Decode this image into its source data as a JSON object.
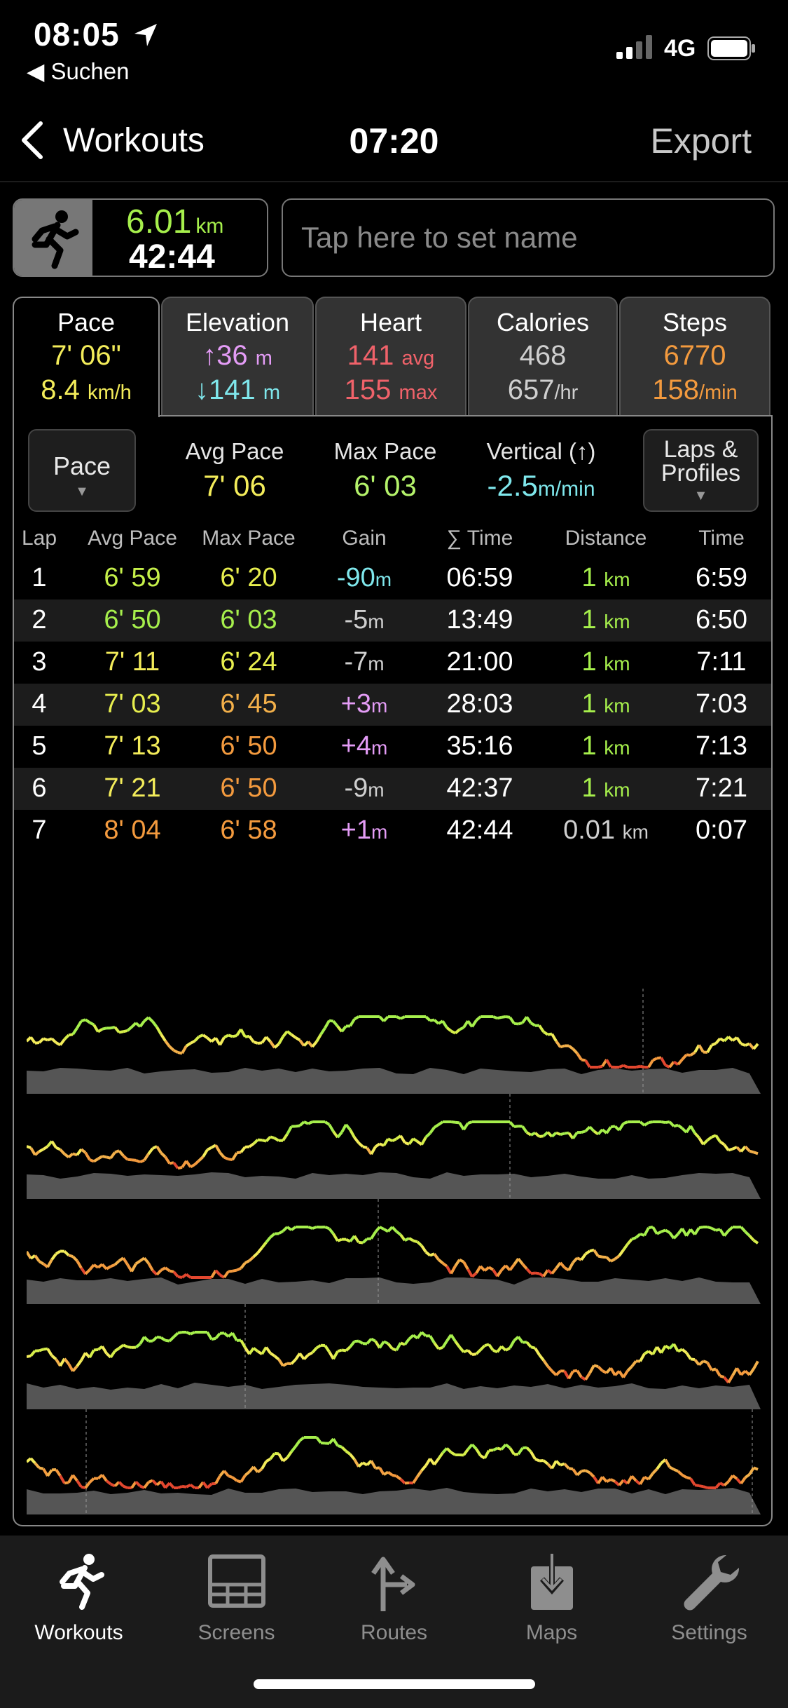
{
  "status": {
    "time": "08:05",
    "back_app": "◀ Suchen",
    "network": "4G"
  },
  "nav": {
    "back_label": "Workouts",
    "title": "07:20",
    "export_label": "Export"
  },
  "summary": {
    "distance": "6.01",
    "distance_unit": "km",
    "duration": "42:44"
  },
  "name_field": {
    "placeholder": "Tap here to set name",
    "value": ""
  },
  "tabs": [
    {
      "label": "Pace",
      "v1": "7' 06\"",
      "v1_unit": "",
      "v2": "8.4",
      "v2_unit": "km/h",
      "color1": "#f3ec5a",
      "color2": "#f3ec5a",
      "active": true
    },
    {
      "label": "Elevation",
      "v1": "↑36",
      "v1_unit": "m",
      "v2": "↓141",
      "v2_unit": "m",
      "color1": "#e49cf6",
      "color2": "#7fe7ec",
      "active": false
    },
    {
      "label": "Heart",
      "v1": "141",
      "v1_unit": "avg",
      "v2": "155",
      "v2_unit": "max",
      "color1": "#f0626a",
      "color2": "#f0626a",
      "active": false
    },
    {
      "label": "Calories",
      "v1": "468",
      "v1_unit": "",
      "v2": "657",
      "v2_unit": "/hr",
      "color1": "#cfcfcf",
      "color2": "#cfcfcf",
      "active": false
    },
    {
      "label": "Steps",
      "v1": "6770",
      "v1_unit": "",
      "v2": "158",
      "v2_unit": "/min",
      "color1": "#f39a3e",
      "color2": "#f39a3e",
      "active": false
    }
  ],
  "controls": {
    "pace_dropdown": "Pace",
    "laps_dropdown_line1": "Laps &",
    "laps_dropdown_line2": "Profiles",
    "dropdown_arrow": "▼"
  },
  "stats": [
    {
      "label": "Avg Pace",
      "value": "7' 06",
      "unit": "",
      "color": "#f3ec5a"
    },
    {
      "label": "Max Pace",
      "value": "6' 03",
      "unit": "",
      "color": "#b4f26a"
    },
    {
      "label": "Vertical (↑)",
      "value": "-2.5",
      "unit": "m/min",
      "color": "#7fe7ec"
    }
  ],
  "laps_table": {
    "headers": [
      "Lap",
      "Avg Pace",
      "Max Pace",
      "Gain",
      "∑ Time",
      "Distance",
      "Time"
    ],
    "rows": [
      {
        "lap": "1",
        "avg": "6' 59",
        "avg_color": "#c6f04a",
        "max": "6' 20",
        "max_color": "#e7ee4e",
        "gain": "-90",
        "gain_unit": "m",
        "gain_color": "#7fe7ec",
        "total": "06:59",
        "dist": "1",
        "dist_unit": "km",
        "dist_color": "#a6ef4c",
        "time": "6:59"
      },
      {
        "lap": "2",
        "avg": "6' 50",
        "avg_color": "#a6ef4c",
        "max": "6' 03",
        "max_color": "#a6ef4c",
        "gain": "-5",
        "gain_unit": "m",
        "gain_color": "#cfcfcf",
        "total": "13:49",
        "dist": "1",
        "dist_unit": "km",
        "dist_color": "#a6ef4c",
        "time": "6:50"
      },
      {
        "lap": "3",
        "avg": "7' 11",
        "avg_color": "#f3ec5a",
        "max": "6' 24",
        "max_color": "#e7ee4e",
        "gain": "-7",
        "gain_unit": "m",
        "gain_color": "#cfcfcf",
        "total": "21:00",
        "dist": "1",
        "dist_unit": "km",
        "dist_color": "#a6ef4c",
        "time": "7:11"
      },
      {
        "lap": "4",
        "avg": "7' 03",
        "avg_color": "#e7ee4e",
        "max": "6' 45",
        "max_color": "#f3b04a",
        "gain": "+3",
        "gain_unit": "m",
        "gain_color": "#e49cf6",
        "total": "28:03",
        "dist": "1",
        "dist_unit": "km",
        "dist_color": "#a6ef4c",
        "time": "7:03"
      },
      {
        "lap": "5",
        "avg": "7' 13",
        "avg_color": "#f3ec5a",
        "max": "6' 50",
        "max_color": "#f39a3e",
        "gain": "+4",
        "gain_unit": "m",
        "gain_color": "#e49cf6",
        "total": "35:16",
        "dist": "1",
        "dist_unit": "km",
        "dist_color": "#a6ef4c",
        "time": "7:13"
      },
      {
        "lap": "6",
        "avg": "7' 21",
        "avg_color": "#f3ec5a",
        "max": "6' 50",
        "max_color": "#f39a3e",
        "gain": "-9",
        "gain_unit": "m",
        "gain_color": "#cfcfcf",
        "total": "42:37",
        "dist": "1",
        "dist_unit": "km",
        "dist_color": "#a6ef4c",
        "time": "7:21"
      },
      {
        "lap": "7",
        "avg": "8' 04",
        "avg_color": "#f39a3e",
        "max": "6' 58",
        "max_color": "#f39a3e",
        "gain": "+1",
        "gain_unit": "m",
        "gain_color": "#e49cf6",
        "total": "42:44",
        "dist": "0.01",
        "dist_unit": "km",
        "dist_color": "#cfcfcf",
        "time": "0:07"
      }
    ]
  },
  "colors": {
    "accent_green": "#a6ef4c",
    "accent_yellow": "#f3ec5a",
    "accent_orange": "#f39a3e",
    "accent_red": "#e2472f"
  },
  "tabbar": [
    {
      "label": "Workouts",
      "icon": "runner-icon",
      "active": true
    },
    {
      "label": "Screens",
      "icon": "screens-icon",
      "active": false
    },
    {
      "label": "Routes",
      "icon": "routes-icon",
      "active": false
    },
    {
      "label": "Maps",
      "icon": "maps-icon",
      "active": false
    },
    {
      "label": "Settings",
      "icon": "wrench-icon",
      "active": false
    }
  ]
}
